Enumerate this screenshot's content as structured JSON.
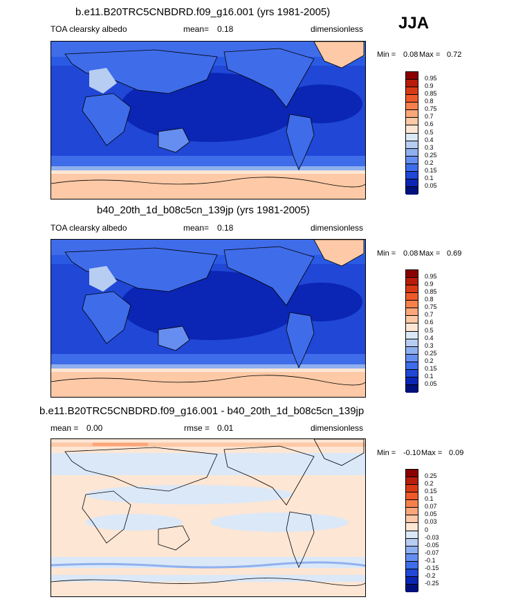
{
  "season": "JJA",
  "chart_data": [
    {
      "type": "heatmap",
      "title": "b.e11.B20TRC5CNBDRD.f09_g16.001 (yrs 1981-2005)",
      "variable": "TOA clearsky albedo",
      "mean_label": "mean=",
      "mean": "0.18",
      "units": "dimensionless",
      "min_label": "Min =",
      "min": "0.08",
      "max_label": "Max =",
      "max": "0.72",
      "levels": [
        "0.95",
        "0.9",
        "0.85",
        "0.8",
        "0.75",
        "0.7",
        "0.6",
        "0.5",
        "0.4",
        "0.3",
        "0.25",
        "0.2",
        "0.15",
        "0.1",
        "0.05"
      ],
      "colors": [
        "#8b0000",
        "#b81c0a",
        "#d83a16",
        "#ee5a2a",
        "#f7814d",
        "#fca77b",
        "#fdc9a6",
        "#fde6d4",
        "#dbe8f8",
        "#b7cdf2",
        "#8fb0ee",
        "#668ef0",
        "#3f6ce9",
        "#2047d6",
        "#0b26b4",
        "#00117d"
      ]
    },
    {
      "type": "heatmap",
      "title": "b40_20th_1d_b08c5cn_139jp (yrs 1981-2005)",
      "variable": "TOA clearsky albedo",
      "mean_label": "mean=",
      "mean": "0.18",
      "units": "dimensionless",
      "min_label": "Min =",
      "min": "0.08",
      "max_label": "Max =",
      "max": "0.69",
      "levels": [
        "0.95",
        "0.9",
        "0.85",
        "0.8",
        "0.75",
        "0.7",
        "0.6",
        "0.5",
        "0.4",
        "0.3",
        "0.25",
        "0.2",
        "0.15",
        "0.1",
        "0.05"
      ],
      "colors": [
        "#8b0000",
        "#b81c0a",
        "#d83a16",
        "#ee5a2a",
        "#f7814d",
        "#fca77b",
        "#fdc9a6",
        "#fde6d4",
        "#dbe8f8",
        "#b7cdf2",
        "#8fb0ee",
        "#668ef0",
        "#3f6ce9",
        "#2047d6",
        "#0b26b4",
        "#00117d"
      ]
    },
    {
      "type": "heatmap",
      "title": "b.e11.B20TRC5CNBDRD.f09_g16.001 - b40_20th_1d_b08c5cn_139jp",
      "mean_label": "mean =",
      "mean": "0.00",
      "rmse_label": "rmse =",
      "rmse": "0.01",
      "units": "dimensionless",
      "min_label": "Min =",
      "min": "-0.10",
      "max_label": "Max =",
      "max": "0.09",
      "levels": [
        "0.25",
        "0.2",
        "0.15",
        "0.1",
        "0.07",
        "0.05",
        "0.03",
        "0",
        "-0.03",
        "-0.05",
        "-0.07",
        "-0.1",
        "-0.15",
        "-0.2",
        "-0.25"
      ],
      "colors": [
        "#8b0000",
        "#b81c0a",
        "#d83a16",
        "#ee5a2a",
        "#f7814d",
        "#fca77b",
        "#fdc9a6",
        "#fde6d4",
        "#dbe8f8",
        "#b7cdf2",
        "#8fb0ee",
        "#668ef0",
        "#3f6ce9",
        "#2047d6",
        "#0b26b4",
        "#00117d"
      ]
    }
  ]
}
